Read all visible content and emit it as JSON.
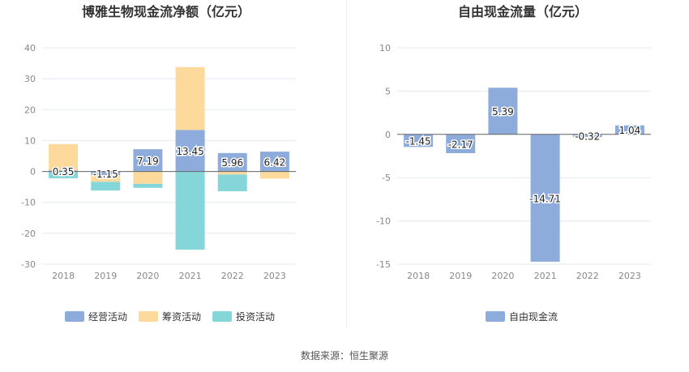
{
  "source_label": "数据来源：恒生聚源",
  "colors": {
    "operating": "#8eacdb",
    "financing": "#fdd99c",
    "investing": "#85d6d9",
    "fcf": "#8eacdb",
    "grid": "#e4e8f2",
    "axis_text": "#888888",
    "title": "#333333"
  },
  "chart_data": [
    {
      "type": "bar",
      "stacked": true,
      "title": "博雅生物现金流净额（亿元）",
      "categories": [
        "2018",
        "2019",
        "2020",
        "2021",
        "2022",
        "2023"
      ],
      "ylim": [
        -30,
        40
      ],
      "yticks": [
        -30,
        -20,
        -10,
        0,
        10,
        20,
        30,
        40
      ],
      "grid": true,
      "legend_position": "bottom",
      "series": [
        {
          "name": "经营活动",
          "color_key": "operating",
          "values": [
            0.35,
            -1.15,
            7.19,
            13.45,
            5.96,
            6.42
          ],
          "labels": [
            "0.35",
            "-1.15",
            "7.19",
            "13.45",
            "5.96",
            "6.42"
          ]
        },
        {
          "name": "筹资活动",
          "color_key": "financing",
          "values": [
            8.5,
            -2.2,
            -4.0,
            20.3,
            -1.0,
            -2.3
          ]
        },
        {
          "name": "投资活动",
          "color_key": "investing",
          "values": [
            -2.2,
            -2.8,
            -1.3,
            -25.3,
            -5.4,
            0
          ]
        }
      ]
    },
    {
      "type": "bar",
      "title": "自由现金流量（亿元）",
      "categories": [
        "2018",
        "2019",
        "2020",
        "2021",
        "2022",
        "2023"
      ],
      "ylim": [
        -15,
        10
      ],
      "yticks": [
        -15,
        -10,
        -5,
        0,
        5,
        10
      ],
      "grid": true,
      "legend_position": "bottom",
      "series": [
        {
          "name": "自由现金流",
          "color_key": "fcf",
          "values": [
            -1.45,
            -2.17,
            5.39,
            -14.71,
            -0.32,
            1.04
          ],
          "labels": [
            "-1.45",
            "-2.17",
            "5.39",
            "-14.71",
            "-0.32",
            "1.04"
          ]
        }
      ]
    }
  ]
}
